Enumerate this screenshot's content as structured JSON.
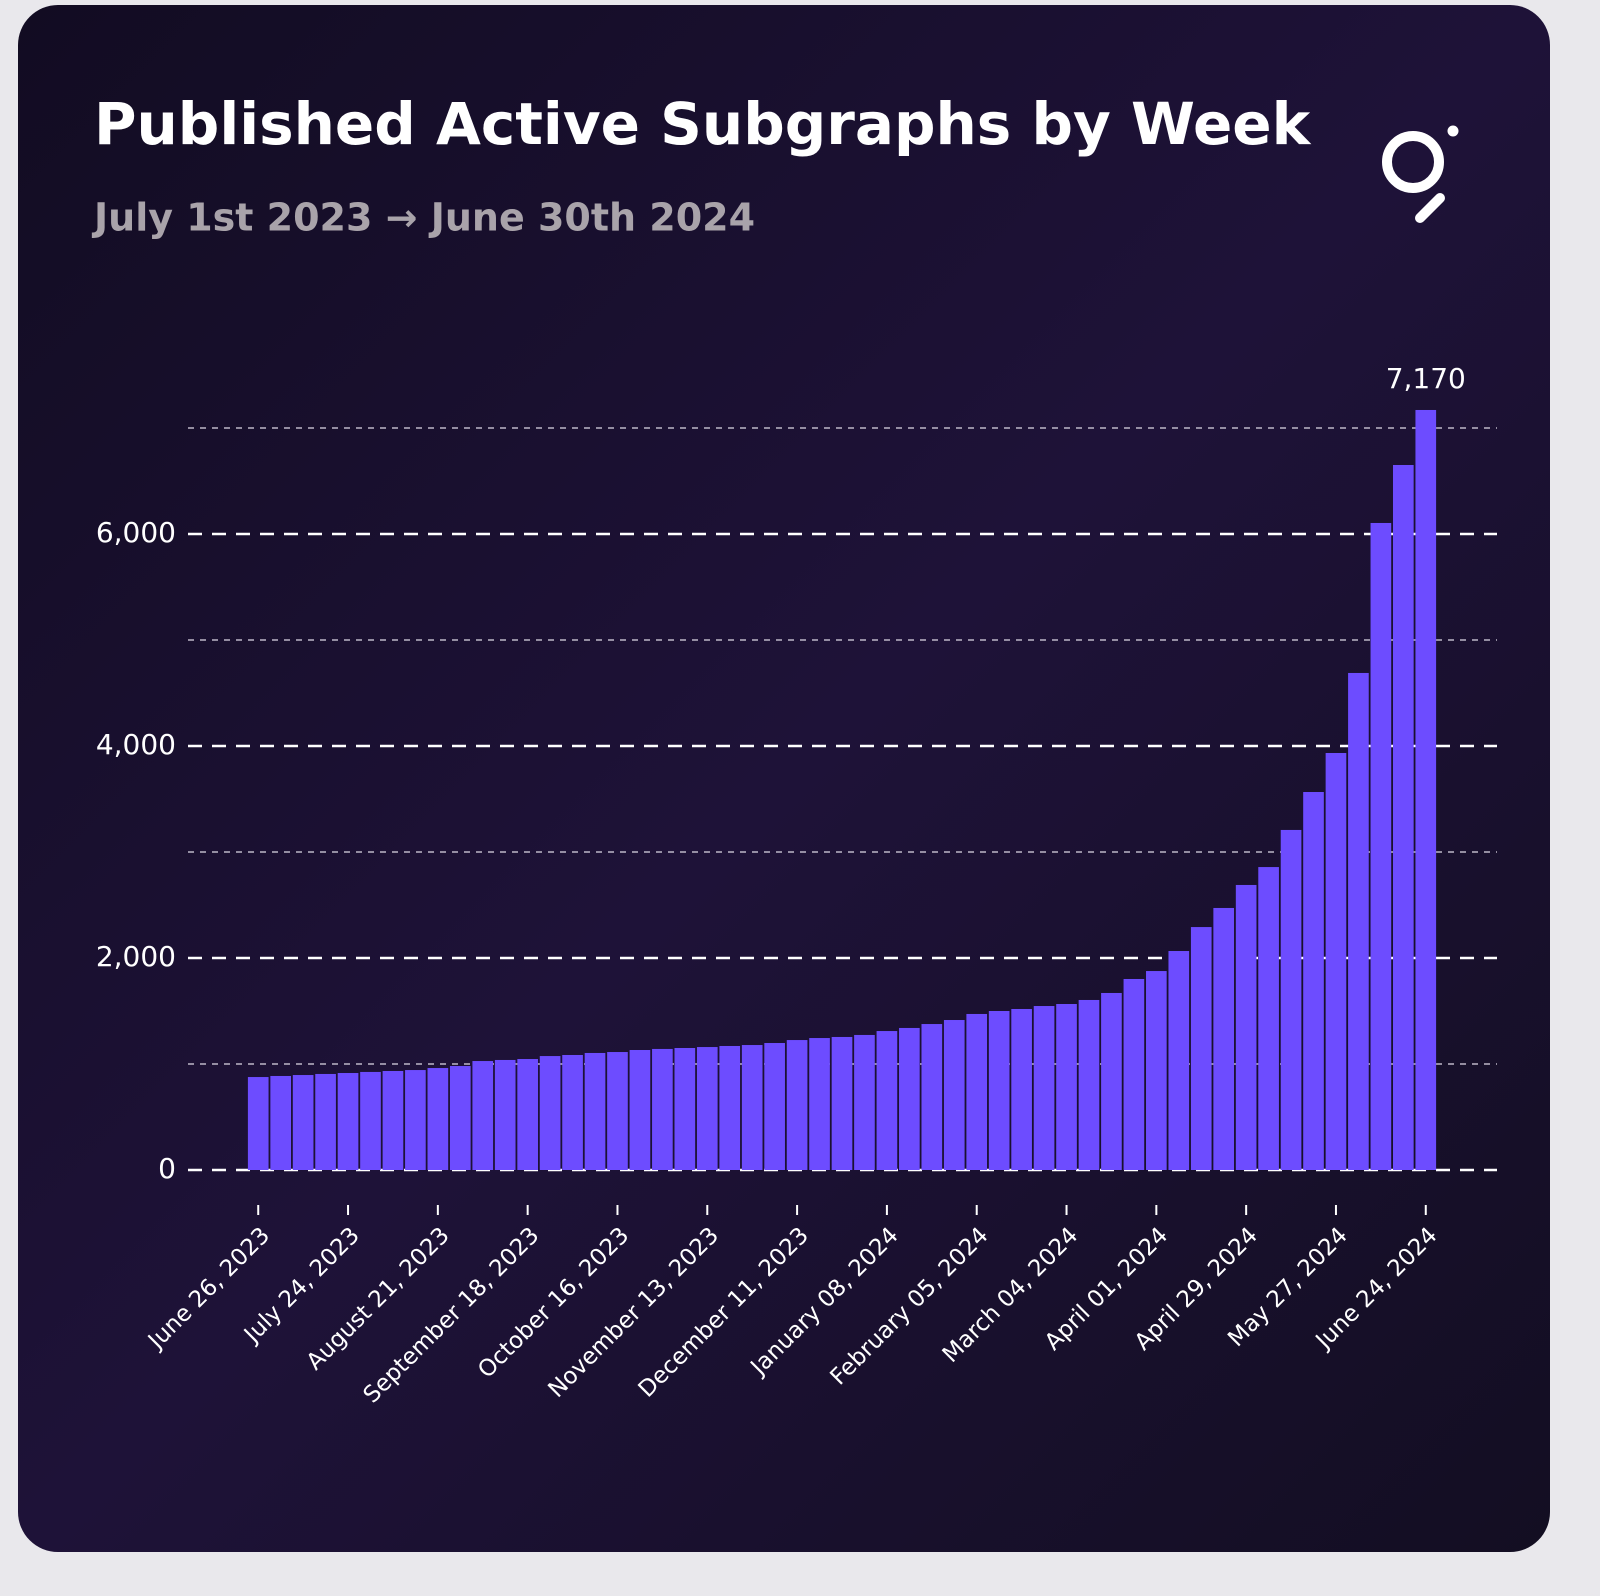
{
  "chart_data": {
    "type": "bar",
    "title": "Published Active Subgraphs by Week",
    "subtitle": "July 1st 2023 → June 30th 2024",
    "categories": [
      "June 26, 2023",
      null,
      null,
      null,
      "July 24, 2023",
      null,
      null,
      null,
      "August 21, 2023",
      null,
      null,
      null,
      "September 18, 2023",
      null,
      null,
      null,
      "October 16, 2023",
      null,
      null,
      null,
      "November 13, 2023",
      null,
      null,
      null,
      "December 11, 2023",
      null,
      null,
      null,
      "January 08, 2024",
      null,
      null,
      null,
      "February 05, 2024",
      null,
      null,
      null,
      "March 04, 2024",
      null,
      null,
      null,
      "April 01, 2024",
      null,
      null,
      null,
      "April 29, 2024",
      null,
      null,
      null,
      "May 27, 2024",
      null,
      null,
      null,
      "June 24, 2024"
    ],
    "values": [
      877,
      887,
      896,
      906,
      915,
      925,
      934,
      943,
      962,
      981,
      1028,
      1038,
      1047,
      1075,
      1085,
      1104,
      1113,
      1132,
      1142,
      1151,
      1160,
      1170,
      1179,
      1198,
      1226,
      1245,
      1255,
      1274,
      1311,
      1340,
      1377,
      1415,
      1472,
      1500,
      1519,
      1547,
      1566,
      1604,
      1670,
      1802,
      1877,
      2066,
      2292,
      2472,
      2689,
      2858,
      3208,
      3566,
      3934,
      4689,
      6104,
      6651,
      7170
    ],
    "value_labels": [
      null,
      null,
      null,
      null,
      null,
      null,
      null,
      null,
      null,
      null,
      null,
      null,
      null,
      null,
      null,
      null,
      null,
      null,
      null,
      null,
      null,
      null,
      null,
      null,
      null,
      null,
      null,
      null,
      null,
      null,
      null,
      null,
      null,
      null,
      null,
      null,
      null,
      null,
      null,
      null,
      null,
      null,
      null,
      null,
      null,
      null,
      null,
      null,
      null,
      null,
      null,
      null,
      "7,170"
    ],
    "color": "#6d4cff",
    "ylim": [
      0,
      7500
    ],
    "yticks": [
      0,
      {
        "value": 2000,
        "label": "2,000"
      },
      {
        "value": 4000,
        "label": "4,000"
      },
      {
        "value": 6000,
        "label": "6,000"
      }
    ],
    "y_minor_ticks": [
      1000,
      3000,
      5000,
      7000
    ],
    "grid": true
  }
}
